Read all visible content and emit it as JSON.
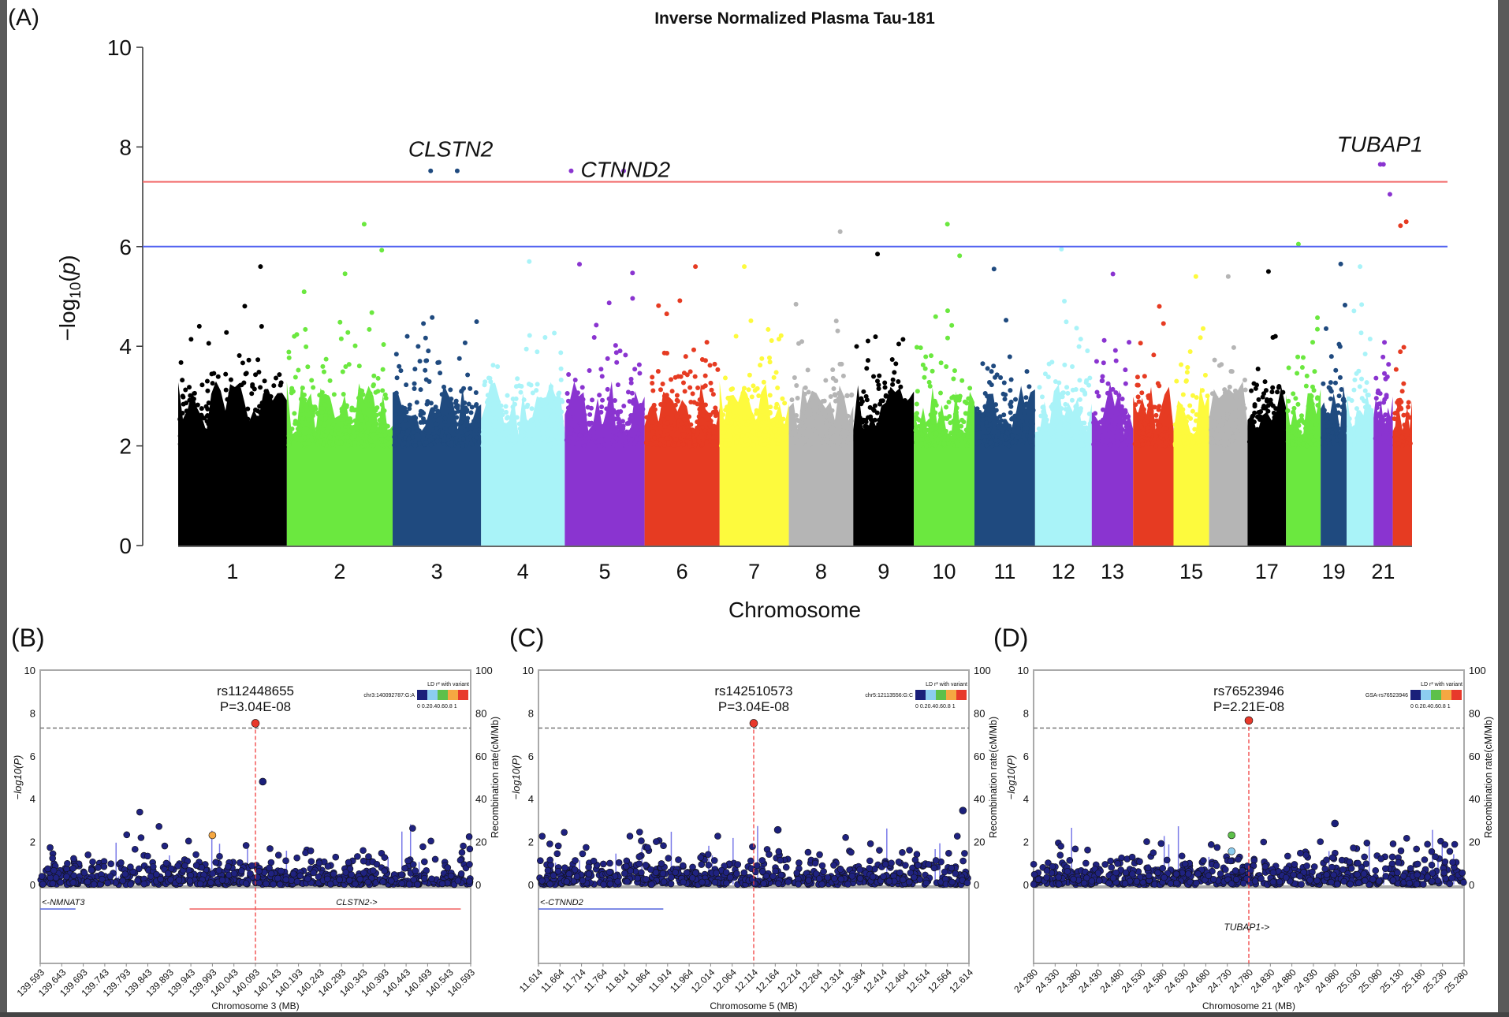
{
  "chart_data": [
    {
      "panel_label": "(A)",
      "type": "scatter",
      "subtype": "manhattan",
      "title": "Inverse Normalized Plasma Tau-181",
      "xlabel": "Chromosome",
      "ylabel": "−log10(p)",
      "ylim": [
        0,
        10
      ],
      "yticks": [
        0,
        2,
        4,
        6,
        8,
        10
      ],
      "xtick_labels": [
        "1",
        "2",
        "3",
        "4",
        "5",
        "6",
        "7",
        "8",
        "9",
        "10",
        "11",
        "12",
        "13",
        "15",
        "17",
        "19",
        "21"
      ],
      "grid": false,
      "thresholds": [
        {
          "value": 7.3,
          "color": "#f26b6b"
        },
        {
          "value": 6.0,
          "color": "#5060f0"
        }
      ],
      "chromosomes": [
        {
          "chr": 1,
          "color": "#000000",
          "max_logp": 5.6
        },
        {
          "chr": 2,
          "color": "#6be83f",
          "max_logp": 6.45
        },
        {
          "chr": 3,
          "color": "#1f4a7f",
          "max_logp": 7.52
        },
        {
          "chr": 4,
          "color": "#a9f3f8",
          "max_logp": 5.7
        },
        {
          "chr": 5,
          "color": "#8a34d0",
          "max_logp": 7.52
        },
        {
          "chr": 6,
          "color": "#e63b22",
          "max_logp": 5.6
        },
        {
          "chr": 7,
          "color": "#fdfa3d",
          "max_logp": 5.6
        },
        {
          "chr": 8,
          "color": "#b5b5b5",
          "max_logp": 6.3
        },
        {
          "chr": 9,
          "color": "#000000",
          "max_logp": 5.85
        },
        {
          "chr": 10,
          "color": "#6be83f",
          "max_logp": 6.45
        },
        {
          "chr": 11,
          "color": "#1f4a7f",
          "max_logp": 5.55
        },
        {
          "chr": 12,
          "color": "#a9f3f8",
          "max_logp": 5.95
        },
        {
          "chr": 13,
          "color": "#8a34d0",
          "max_logp": 5.45
        },
        {
          "chr": 14,
          "color": "#e63b22",
          "max_logp": 4.8
        },
        {
          "chr": 15,
          "color": "#fdfa3d",
          "max_logp": 5.4
        },
        {
          "chr": 16,
          "color": "#b5b5b5",
          "max_logp": 5.4
        },
        {
          "chr": 17,
          "color": "#000000",
          "max_logp": 5.5
        },
        {
          "chr": 18,
          "color": "#6be83f",
          "max_logp": 6.05
        },
        {
          "chr": 19,
          "color": "#1f4a7f",
          "max_logp": 5.65
        },
        {
          "chr": 20,
          "color": "#a9f3f8",
          "max_logp": 5.6
        },
        {
          "chr": 21,
          "color": "#8a34d0",
          "max_logp": 7.65
        },
        {
          "chr": 22,
          "color": "#e63b22",
          "max_logp": 6.5
        }
      ],
      "annotations": [
        {
          "gene": "CLSTN2",
          "chr": 3,
          "logp": 7.52,
          "color": "#1f4a7f"
        },
        {
          "gene": "CTNND2",
          "chr": 5,
          "logp": 7.52,
          "color": "#8a34d0"
        },
        {
          "gene": "TUBAP1",
          "chr": 21,
          "logp": 7.65,
          "color": "#8a34d0"
        }
      ]
    },
    {
      "panel_label": "(B)",
      "type": "scatter",
      "subtype": "regional",
      "lead_snp": "rs112448655",
      "lead_p": "P=3.04E-08",
      "lead_pos": 140.093,
      "lead_logp": 7.52,
      "max_background_logp": 4.8,
      "ld_reference": "chr3:140092787:G:A",
      "xlabel": "Chromosome 3 (MB)",
      "ylabel": "−log10(P)",
      "y2label": "Recombination rate(cM/Mb)",
      "xlim": [
        139.593,
        140.593
      ],
      "ylim": [
        0,
        10
      ],
      "y2lim": [
        0,
        100
      ],
      "yticks": [
        "0",
        "2",
        "4",
        "6",
        "8",
        "10"
      ],
      "y2ticks": [
        "0",
        "20",
        "40",
        "60",
        "80",
        "100"
      ],
      "xticks": [
        "139.593",
        "139.643",
        "139.693",
        "139.743",
        "139.793",
        "139.843",
        "139.893",
        "139.943",
        "139.993",
        "140.043",
        "140.093",
        "140.143",
        "140.193",
        "140.243",
        "140.293",
        "140.343",
        "140.393",
        "140.443",
        "140.493",
        "140.543",
        "140.593"
      ],
      "significance_line": 7.3,
      "notable_points": [
        {
          "pos": 140.11,
          "logp": 4.8,
          "ld": "0-0.2"
        },
        {
          "pos": 139.993,
          "logp": 2.3,
          "ld": "0.6-0.8"
        }
      ],
      "genes": [
        {
          "label": "<-NMNAT3",
          "start": 139.593,
          "end": 139.675,
          "color": "#5566dd"
        },
        {
          "label": "CLSTN2->",
          "start": 139.94,
          "end": 140.57,
          "color": "#f06060"
        }
      ]
    },
    {
      "panel_label": "(C)",
      "type": "scatter",
      "subtype": "regional",
      "lead_snp": "rs142510573",
      "lead_p": "P=3.04E-08",
      "lead_pos": 12.114,
      "lead_logp": 7.52,
      "max_background_logp": 3.45,
      "ld_reference": "chr5:12113556:G:C",
      "xlabel": "Chromosome 5 (MB)",
      "ylabel": "−log10(P)",
      "y2label": "Recombination rate(cM/Mb)",
      "xlim": [
        11.614,
        12.614
      ],
      "ylim": [
        0,
        10
      ],
      "y2lim": [
        0,
        100
      ],
      "yticks": [
        "0",
        "2",
        "4",
        "6",
        "8",
        "10"
      ],
      "y2ticks": [
        "0",
        "20",
        "40",
        "60",
        "80",
        "100"
      ],
      "xticks": [
        "11.614",
        "11.664",
        "11.714",
        "11.764",
        "11.814",
        "11.864",
        "11.914",
        "11.964",
        "12.014",
        "12.064",
        "12.114",
        "12.164",
        "12.214",
        "12.264",
        "12.314",
        "12.364",
        "12.414",
        "12.464",
        "12.514",
        "12.564",
        "12.614"
      ],
      "significance_line": 7.3,
      "notable_points": [
        {
          "pos": 12.17,
          "logp": 2.55,
          "ld": "0-0.2"
        },
        {
          "pos": 12.6,
          "logp": 3.45,
          "ld": "0-0.2"
        }
      ],
      "genes": [
        {
          "label": "<-CTNND2",
          "start": 11.614,
          "end": 11.904,
          "color": "#5566dd"
        }
      ]
    },
    {
      "panel_label": "(D)",
      "type": "scatter",
      "subtype": "regional",
      "lead_snp": "rs76523946",
      "lead_p": "P=2.21E-08",
      "lead_pos": 24.78,
      "lead_logp": 7.65,
      "max_background_logp": 2.85,
      "ld_reference": "GSA-rs76523946",
      "xlabel": "Chromosome 21 (MB)",
      "ylabel": "−log10(P)",
      "y2label": "Recombination rate(cM/Mb)",
      "xlim": [
        24.28,
        25.28
      ],
      "ylim": [
        0,
        10
      ],
      "y2lim": [
        0,
        100
      ],
      "yticks": [
        "0",
        "2",
        "4",
        "6",
        "8",
        "10"
      ],
      "y2ticks": [
        "0",
        "20",
        "40",
        "60",
        "80",
        "100"
      ],
      "xticks": [
        "24.280",
        "24.330",
        "24.380",
        "24.430",
        "24.480",
        "24.530",
        "24.580",
        "24.630",
        "24.680",
        "24.730",
        "24.780",
        "24.830",
        "24.880",
        "24.930",
        "24.980",
        "25.030",
        "25.080",
        "25.130",
        "25.180",
        "25.230",
        "25.280"
      ],
      "significance_line": 7.3,
      "notable_points": [
        {
          "pos": 24.74,
          "logp": 2.3,
          "ld": "0.4-0.6"
        },
        {
          "pos": 24.74,
          "logp": 1.55,
          "ld": "0.2-0.4"
        },
        {
          "pos": 24.98,
          "logp": 2.85,
          "ld": "0-0.2"
        }
      ],
      "genes": [
        {
          "label": "TUBAP1->",
          "start": 24.775,
          "end": 24.785,
          "color": "#f06060"
        }
      ]
    }
  ],
  "ld_legend": {
    "title": "LD r² with variant",
    "colors": [
      "#1a1f7a",
      "#8ccdf0",
      "#5dc04a",
      "#f5a742",
      "#e8392b"
    ],
    "labels": "0 0.20.40.60.8 1"
  }
}
